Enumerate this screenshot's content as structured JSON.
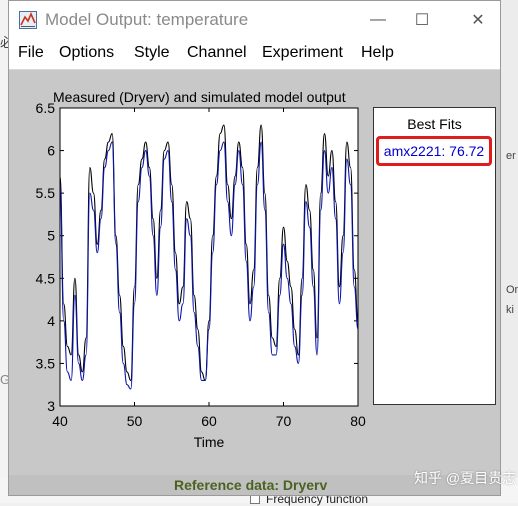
{
  "window": {
    "title": "Model Output: temperature",
    "minimize_glyph": "—",
    "maximize_glyph": "☐",
    "close_glyph": "✕"
  },
  "menu": [
    "File",
    "Options",
    "Style",
    "Channel",
    "Experiment",
    "Help"
  ],
  "plot": {
    "title": "Measured (Dryerv) and simulated model output",
    "xlabel": "Time"
  },
  "best_fits": {
    "title": "Best Fits",
    "entry": "amx2221: 76.72"
  },
  "status": {
    "reference": "Reference data:  Dryerv"
  },
  "background": {
    "checkbox_label": "Frequency function",
    "watermark": "知乎 @夏目贵志",
    "right_fragments": [
      "er",
      "Or",
      "ki"
    ],
    "left_fragments": [
      "必",
      "G"
    ]
  },
  "colors": {
    "measured": "#000000",
    "simulated": "#0a14aa",
    "highlight": "#e21c1c"
  },
  "chart_data": {
    "type": "line",
    "title": "Measured (Dryerv) and simulated model output",
    "xlabel": "Time",
    "ylabel": "",
    "xlim": [
      40,
      80
    ],
    "ylim": [
      3,
      6.5
    ],
    "xticks": [
      40,
      50,
      60,
      70,
      80
    ],
    "yticks": [
      3,
      3.5,
      4,
      4.5,
      5,
      5.5,
      6,
      6.5
    ],
    "grid": false,
    "series": [
      {
        "name": "",
        "color": "#000000",
        "x": [
          40,
          40.5,
          41,
          41.5,
          42,
          42.5,
          43,
          43.5,
          44,
          44.5,
          45,
          45.5,
          46,
          46.5,
          47,
          47.5,
          48,
          48.5,
          49,
          49.5,
          50,
          50.5,
          51,
          51.5,
          52,
          52.5,
          53,
          53.5,
          54,
          54.5,
          55,
          55.5,
          56,
          56.5,
          57,
          57.5,
          58,
          58.5,
          59,
          59.5,
          60,
          60.5,
          61,
          61.5,
          62,
          62.5,
          63,
          63.5,
          64,
          64.5,
          65,
          65.5,
          66,
          66.5,
          67,
          67.5,
          68,
          68.5,
          69,
          69.5,
          70,
          70.5,
          71,
          71.5,
          72,
          72.5,
          73,
          73.5,
          74,
          74.5,
          75,
          75.5,
          76,
          76.5,
          77,
          77.5,
          78,
          78.5,
          79,
          79.5,
          80
        ],
        "y": [
          5.7,
          4.2,
          3.7,
          3.6,
          4.5,
          3.6,
          3.4,
          3.8,
          5.8,
          5.5,
          4.9,
          5.3,
          5.9,
          6.1,
          6.2,
          5.0,
          4.3,
          3.7,
          3.4,
          3.3,
          4.4,
          5.6,
          5.9,
          6.1,
          5.8,
          5.2,
          4.5,
          5.3,
          6.0,
          6.1,
          5.6,
          4.8,
          4.2,
          4.4,
          5.4,
          5.2,
          4.3,
          3.9,
          3.4,
          3.3,
          4.0,
          5.0,
          5.7,
          6.2,
          6.3,
          5.6,
          5.2,
          5.7,
          6.1,
          5.8,
          4.9,
          4.2,
          4.6,
          5.8,
          6.3,
          5.5,
          4.3,
          3.8,
          3.7,
          4.5,
          5.1,
          4.7,
          4.4,
          3.9,
          3.6,
          4.5,
          5.6,
          5.3,
          4.6,
          3.8,
          5.5,
          6.2,
          5.7,
          6.0,
          5.4,
          4.4,
          5.0,
          6.1,
          5.8,
          4.6,
          4.0
        ]
      },
      {
        "name": "",
        "color": "#0a14aa",
        "x": [
          40,
          40.5,
          41,
          41.5,
          42,
          42.5,
          43,
          43.5,
          44,
          44.5,
          45,
          45.5,
          46,
          46.5,
          47,
          47.5,
          48,
          48.5,
          49,
          49.5,
          50,
          50.5,
          51,
          51.5,
          52,
          52.5,
          53,
          53.5,
          54,
          54.5,
          55,
          55.5,
          56,
          56.5,
          57,
          57.5,
          58,
          58.5,
          59,
          59.5,
          60,
          60.5,
          61,
          61.5,
          62,
          62.5,
          63,
          63.5,
          64,
          64.5,
          65,
          65.5,
          66,
          66.5,
          67,
          67.5,
          68,
          68.5,
          69,
          69.5,
          70,
          70.5,
          71,
          71.5,
          72,
          72.5,
          73,
          73.5,
          74,
          74.5,
          75,
          75.5,
          76,
          76.5,
          77,
          77.5,
          78,
          78.5,
          79,
          79.5,
          80
        ],
        "y": [
          5.6,
          4.0,
          3.4,
          3.3,
          4.3,
          3.5,
          3.3,
          3.6,
          5.5,
          5.3,
          4.8,
          5.2,
          5.8,
          6.0,
          6.1,
          4.9,
          4.1,
          3.5,
          3.25,
          3.2,
          4.2,
          5.4,
          5.8,
          6.0,
          5.7,
          5.0,
          4.3,
          5.1,
          5.9,
          6.0,
          5.4,
          4.6,
          4.0,
          4.2,
          5.2,
          5.0,
          4.1,
          3.7,
          3.3,
          3.3,
          3.9,
          4.8,
          5.6,
          6.0,
          6.1,
          5.4,
          5.0,
          5.6,
          6.0,
          5.6,
          4.7,
          4.0,
          4.4,
          5.6,
          6.1,
          5.3,
          4.1,
          3.6,
          3.6,
          4.3,
          4.9,
          4.5,
          4.2,
          3.7,
          3.5,
          4.3,
          5.4,
          5.1,
          4.4,
          3.6,
          5.3,
          6.0,
          5.5,
          5.8,
          5.2,
          4.2,
          4.8,
          5.9,
          5.6,
          4.4,
          3.9
        ]
      }
    ]
  }
}
